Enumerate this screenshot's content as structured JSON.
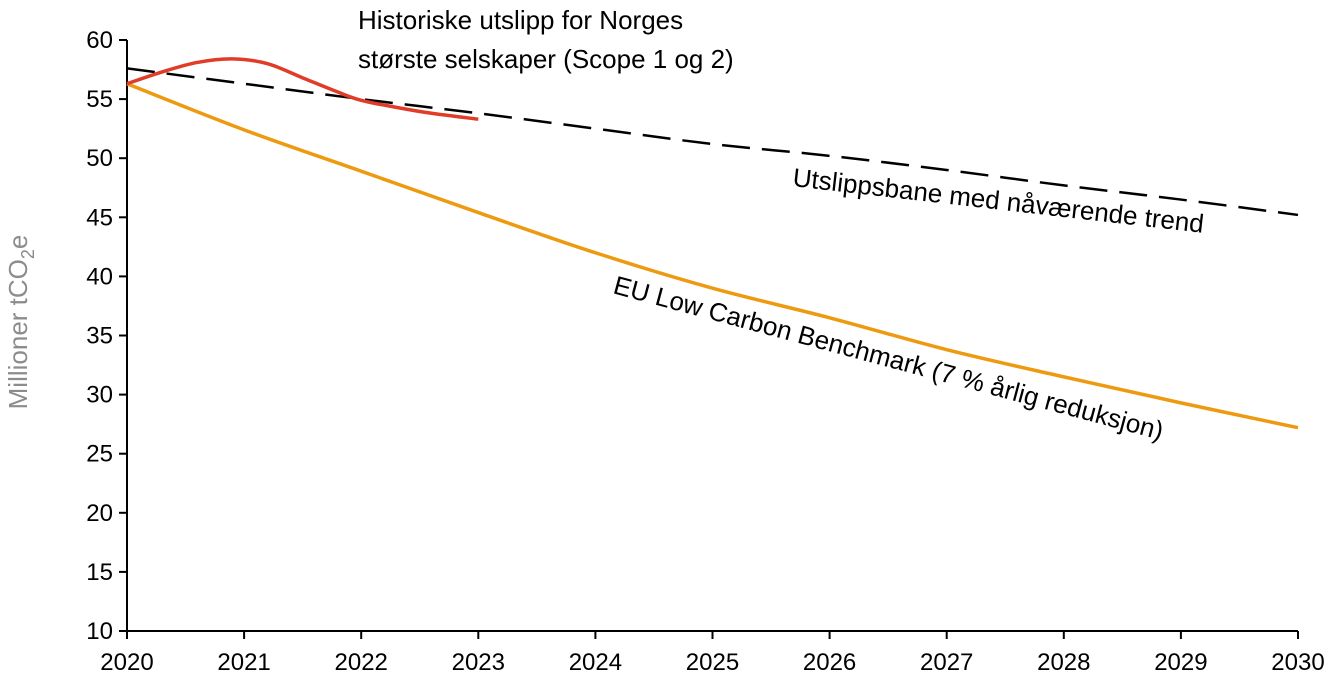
{
  "chart_data": {
    "type": "line",
    "title": "",
    "xlabel": "",
    "ylabel": "Millioner tCO",
    "ylabel_sub": "2",
    "ylabel_suffix": "e",
    "xlim": [
      2020,
      2030
    ],
    "ylim": [
      10,
      60
    ],
    "x_ticks": [
      "2020",
      "2021",
      "2022",
      "2023",
      "2024",
      "2025",
      "2026",
      "2027",
      "2028",
      "2029",
      "2030"
    ],
    "y_ticks": [
      "10",
      "15",
      "20",
      "25",
      "30",
      "35",
      "40",
      "45",
      "50",
      "55",
      "60"
    ],
    "grid": false,
    "series": [
      {
        "name": "Historiske utslipp for Norges største selskaper (Scope 1 og 2)",
        "color": "#e03c28",
        "style": "solid",
        "x": [
          2020,
          2020.3,
          2020.6,
          2020.9,
          2021.2,
          2021.5,
          2021.8,
          2022.0,
          2022.3,
          2022.6,
          2023.0
        ],
        "y": [
          56.3,
          57.3,
          58.1,
          58.4,
          58.0,
          56.8,
          55.6,
          54.9,
          54.3,
          53.8,
          53.3
        ]
      },
      {
        "name": "Utslippsbane med nåværende trend",
        "color": "#000000",
        "style": "dashed",
        "x": [
          2020,
          2021,
          2022,
          2023,
          2024,
          2025,
          2026,
          2027,
          2028,
          2029,
          2030
        ],
        "y": [
          57.6,
          56.3,
          55.0,
          53.8,
          52.5,
          51.2,
          50.2,
          49.0,
          47.7,
          46.5,
          45.2
        ]
      },
      {
        "name": "EU Low Carbon Benchmark (7 % årlig reduksjon)",
        "color": "#ee9a10",
        "style": "solid",
        "x": [
          2020,
          2021,
          2022,
          2023,
          2024,
          2025,
          2026,
          2027,
          2028,
          2029,
          2030
        ],
        "y": [
          56.3,
          52.4,
          48.9,
          45.4,
          42.0,
          39.0,
          36.5,
          33.8,
          31.5,
          29.3,
          27.2
        ]
      }
    ],
    "annotations": {
      "historical_line1": "Historiske utslipp for Norges",
      "historical_line2": "største selskaper (Scope 1 og 2)",
      "trend": "Utslippsbane med nåværende trend",
      "benchmark": "EU Low Carbon Benchmark (7 % årlig reduksjon)"
    }
  }
}
